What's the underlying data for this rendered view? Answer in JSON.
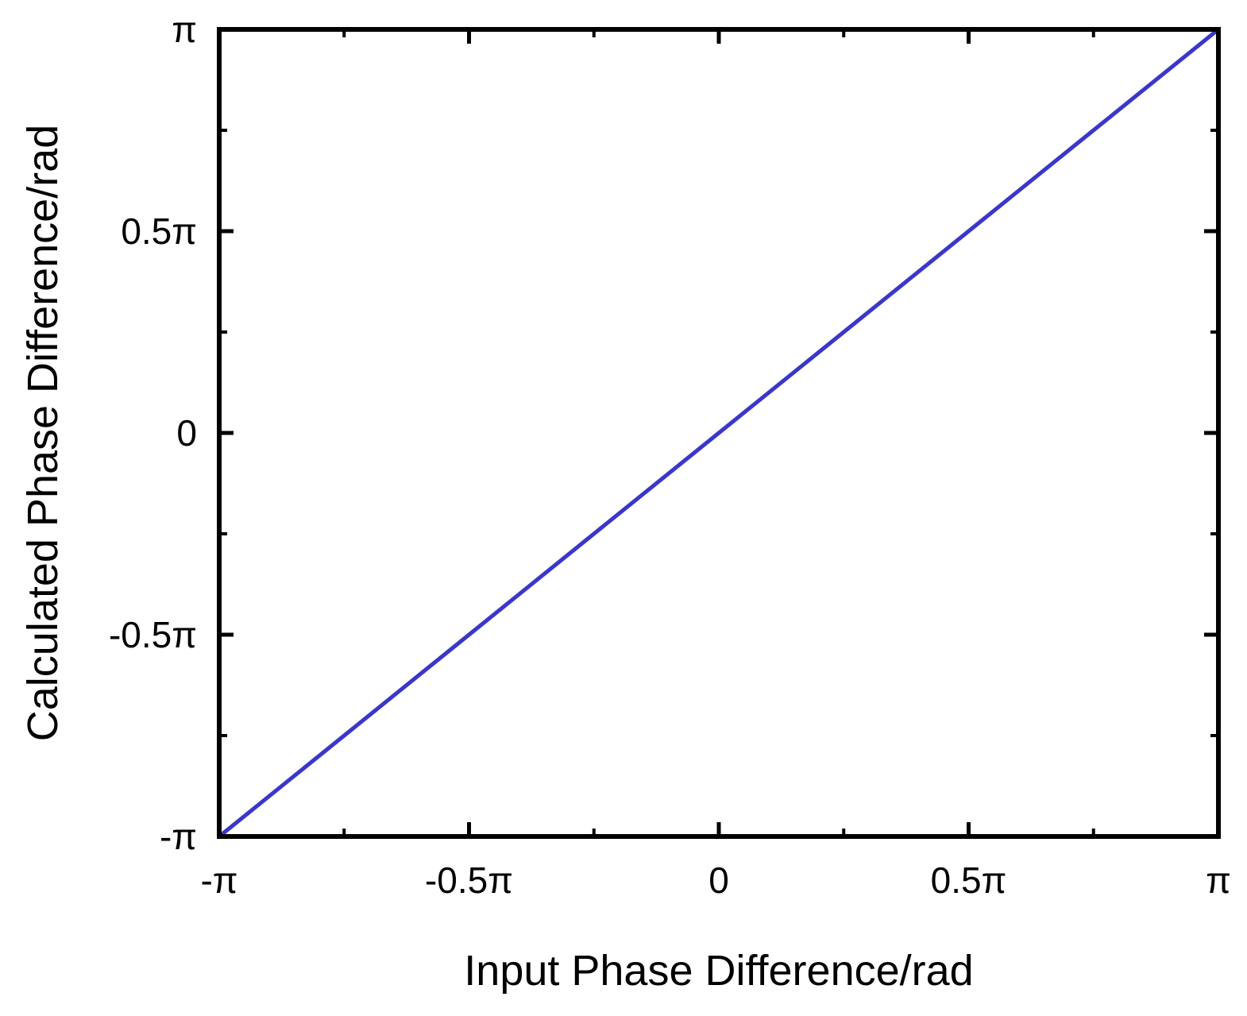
{
  "chart_data": {
    "type": "line",
    "title": "",
    "xlabel": "Input Phase Difference/rad",
    "ylabel": "Calculated Phase Difference/rad",
    "xlim": [
      -3.14159,
      3.14159
    ],
    "ylim": [
      -3.14159,
      3.14159
    ],
    "grid": false,
    "legend": "none",
    "x_ticks": [
      {
        "value": -3.14159,
        "label": "-π"
      },
      {
        "value": -1.5708,
        "label": "-0.5π"
      },
      {
        "value": 0,
        "label": "0"
      },
      {
        "value": 1.5708,
        "label": "0.5π"
      },
      {
        "value": 3.14159,
        "label": "π"
      }
    ],
    "y_ticks": [
      {
        "value": -3.14159,
        "label": "-π"
      },
      {
        "value": -1.5708,
        "label": "-0.5π"
      },
      {
        "value": 0,
        "label": "0"
      },
      {
        "value": 1.5708,
        "label": "0.5π"
      },
      {
        "value": 3.14159,
        "label": "π"
      }
    ],
    "minor_ticks": [
      -2.35619,
      -0.7854,
      0.7854,
      2.35619
    ],
    "series": [
      {
        "color": "#3b37c8",
        "x": [
          -3.14159,
          -2.35619,
          -1.5708,
          -0.7854,
          0,
          0.7854,
          1.5708,
          2.35619,
          3.14159
        ],
        "y": [
          -3.14159,
          -2.35619,
          -1.5708,
          -0.7854,
          0,
          0.7854,
          1.5708,
          2.35619,
          3.14159
        ]
      }
    ]
  }
}
